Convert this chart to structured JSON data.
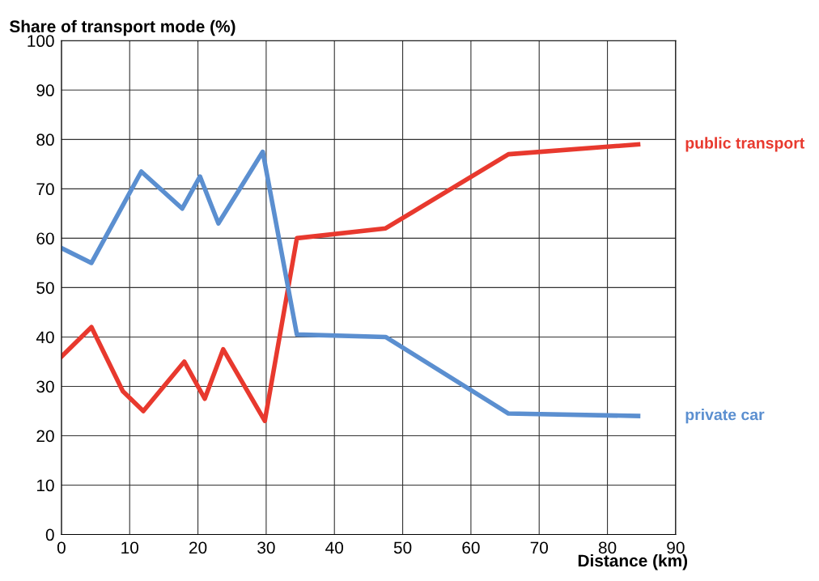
{
  "chart_data": {
    "type": "line",
    "ylabel": "Share of transport mode (%)",
    "xlabel": "Distance (km)",
    "xlim": [
      0,
      90
    ],
    "xticks": [
      0,
      10,
      20,
      30,
      40,
      50,
      60,
      70,
      80,
      90
    ],
    "ylim": [
      0,
      100
    ],
    "yticks": [
      0,
      10,
      20,
      30,
      40,
      50,
      60,
      70,
      80,
      90,
      100
    ],
    "grid": true,
    "legend": false,
    "marker": "none",
    "line_style": "solid",
    "series": [
      {
        "name": "public transport",
        "color": "#e8392e",
        "x": [
          0,
          4.4,
          9,
          12,
          18,
          21,
          23.7,
          29.8,
          34.5,
          47.5,
          65.5,
          84.5
        ],
        "values": [
          36,
          42,
          29,
          25,
          35,
          27.5,
          37.5,
          23,
          60,
          62,
          77,
          79
        ]
      },
      {
        "name": "private car",
        "color": "#5b8fd0",
        "x": [
          0,
          4.4,
          11.7,
          17.7,
          20.3,
          23,
          29.5,
          34.5,
          47.5,
          65.5,
          84.5
        ],
        "values": [
          58,
          55,
          73.5,
          66,
          72.5,
          63,
          77.5,
          40.5,
          40,
          24.5,
          24
        ]
      }
    ]
  }
}
